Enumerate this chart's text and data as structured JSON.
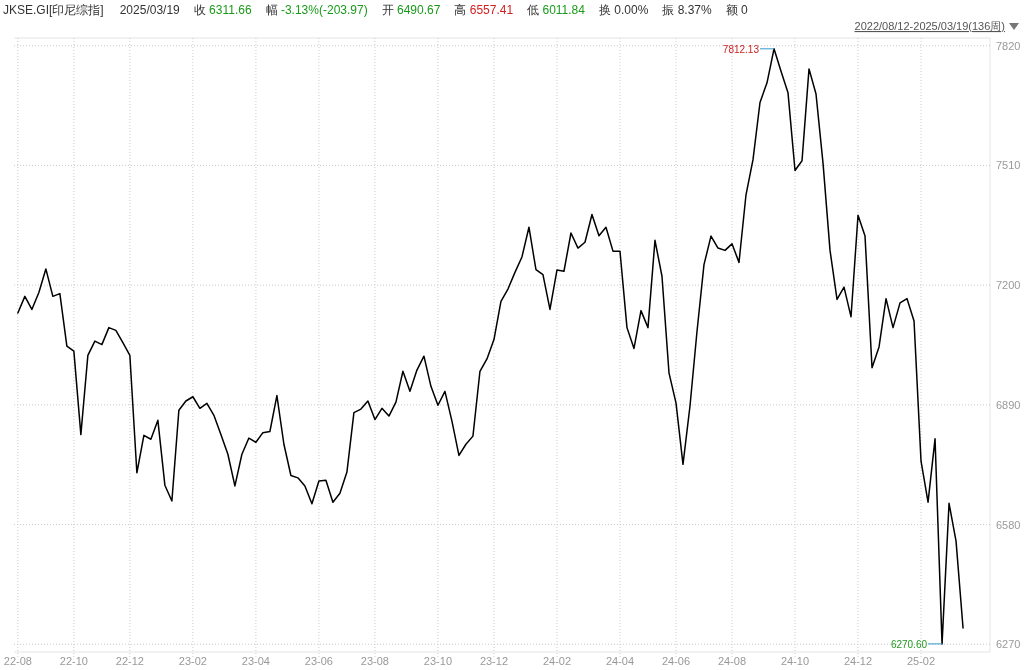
{
  "chart_data": {
    "type": "line",
    "title": "JKSE.GI[印尼综指]",
    "categories": [
      "22-08",
      null,
      null,
      null,
      null,
      null,
      null,
      null,
      "22-10",
      null,
      null,
      null,
      null,
      null,
      null,
      null,
      "22-12",
      null,
      null,
      null,
      null,
      null,
      null,
      null,
      null,
      "23-02",
      null,
      null,
      null,
      null,
      null,
      null,
      null,
      null,
      "23-04",
      null,
      null,
      null,
      null,
      null,
      null,
      null,
      null,
      "23-06",
      null,
      null,
      null,
      null,
      null,
      null,
      null,
      "23-08",
      null,
      null,
      null,
      null,
      null,
      null,
      null,
      null,
      "23-10",
      null,
      null,
      null,
      null,
      null,
      null,
      null,
      "23-12",
      null,
      null,
      null,
      null,
      null,
      null,
      null,
      null,
      "24-02",
      null,
      null,
      null,
      null,
      null,
      null,
      null,
      null,
      "24-04",
      null,
      null,
      null,
      null,
      null,
      null,
      null,
      "24-06",
      null,
      null,
      null,
      null,
      null,
      null,
      null,
      "24-08",
      null,
      null,
      null,
      null,
      null,
      null,
      null,
      null,
      "24-10",
      null,
      null,
      null,
      null,
      null,
      null,
      null,
      null,
      "24-12",
      null,
      null,
      null,
      null,
      null,
      null,
      null,
      null,
      "25-02",
      null,
      null,
      null,
      null,
      null,
      null
    ],
    "values": [
      7128,
      7171,
      7137,
      7181,
      7242,
      7171,
      7178,
      7042,
      7029,
      6813,
      7018,
      7055,
      7046,
      7090,
      7083,
      7051,
      7018,
      6714,
      6811,
      6801,
      6850,
      6682,
      6641,
      6876,
      6900,
      6911,
      6881,
      6894,
      6863,
      6813,
      6762,
      6680,
      6762,
      6804,
      6793,
      6818,
      6821,
      6914,
      6788,
      6707,
      6701,
      6680,
      6634,
      6693,
      6695,
      6638,
      6661,
      6716,
      6870,
      6879,
      6900,
      6852,
      6881,
      6861,
      6897,
      6977,
      6925,
      6980,
      7016,
      6938,
      6889,
      6925,
      6848,
      6759,
      6788,
      6809,
      6977,
      7009,
      7059,
      7158,
      7190,
      7233,
      7273,
      7350,
      7240,
      7227,
      7137,
      7239,
      7236,
      7335,
      7296,
      7311,
      7383,
      7328,
      7350,
      7288,
      7288,
      7090,
      7036,
      7134,
      7090,
      7316,
      7223,
      6973,
      6895,
      6736,
      6887,
      7080,
      7253,
      7327,
      7296,
      7290,
      7307,
      7259,
      7434,
      7525,
      7673,
      7724,
      7812,
      7754,
      7698,
      7497,
      7522,
      7760,
      7695,
      7516,
      7290,
      7163,
      7195,
      7118,
      7381,
      7327,
      6986,
      7040,
      7165,
      7090,
      7154,
      7165,
      7107,
      6744,
      6638,
      6802,
      6271,
      6635,
      6537,
      6312
    ],
    "color": "#000000",
    "ylim": [
      6250,
      7840
    ],
    "yticks": [
      6270,
      6580,
      6890,
      7200,
      7510,
      7820
    ],
    "grid": true,
    "annotations": [
      "2025/03/19",
      "收 6311.66",
      "幅 -3.13%(-203.97)",
      "开 6490.67",
      "高 6557.41",
      "低 6011.84",
      "换 0.00%",
      "振 8.37%",
      "额 0",
      "2022/08/12-2025/03/19(136周)",
      "7812.13",
      "6270.60"
    ]
  }
}
